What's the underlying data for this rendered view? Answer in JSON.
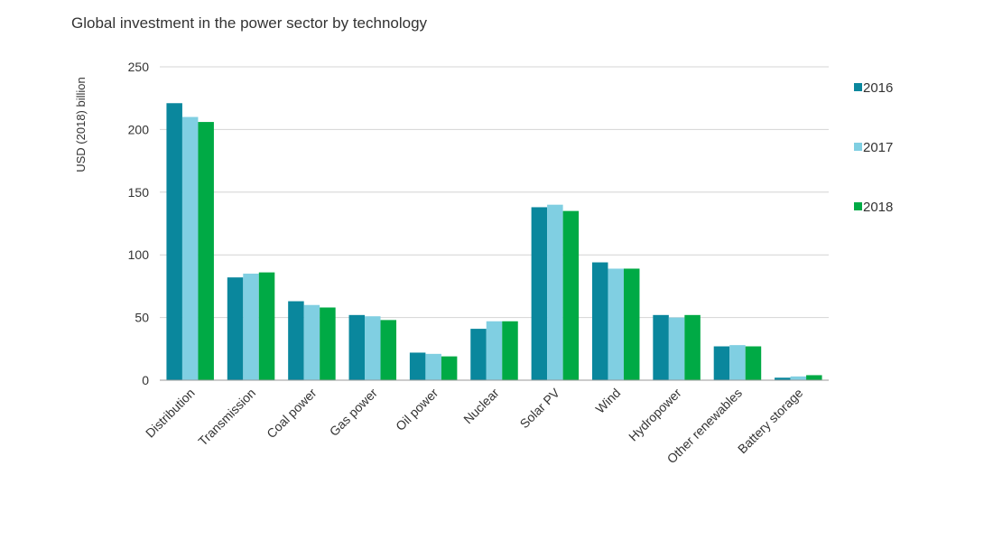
{
  "chart_data": {
    "type": "bar",
    "title": "Global investment in the power sector by technology",
    "xlabel": "",
    "ylabel": "USD (2018) billion",
    "ylim": [
      0,
      250
    ],
    "yticks": [
      0,
      50,
      100,
      150,
      200,
      250
    ],
    "grid": true,
    "legend_position": "right",
    "categories": [
      "Distribution",
      "Transmission",
      "Coal power",
      "Gas power",
      "Oil power",
      "Nuclear",
      "Solar PV",
      "Wind",
      "Hydropower",
      "Other renewables",
      "Battery storage"
    ],
    "series": [
      {
        "name": "2016",
        "color": "#0a879d",
        "values": [
          221,
          82,
          63,
          52,
          22,
          41,
          138,
          94,
          52,
          27,
          2
        ]
      },
      {
        "name": "2017",
        "color": "#80cfe2",
        "values": [
          210,
          85,
          60,
          51,
          21,
          47,
          140,
          89,
          50,
          28,
          3
        ]
      },
      {
        "name": "2018",
        "color": "#00aa45",
        "values": [
          206,
          86,
          58,
          48,
          19,
          47,
          135,
          89,
          52,
          27,
          4
        ]
      }
    ]
  },
  "colors": {
    "gridline": "#d4d4d4",
    "axis": "#999999",
    "text": "#333333"
  }
}
